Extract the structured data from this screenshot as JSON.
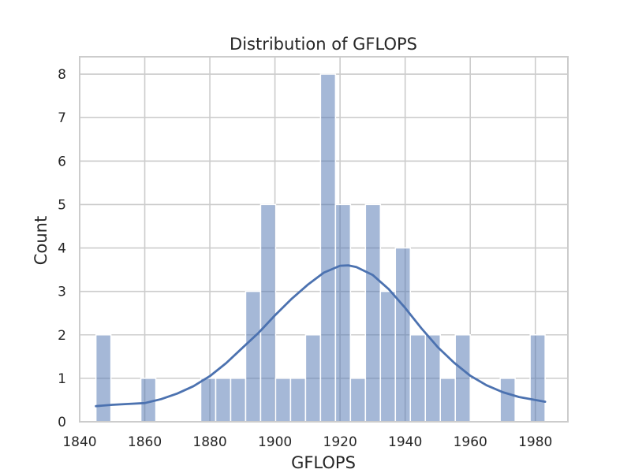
{
  "chart_data": {
    "type": "bar",
    "title": "Distribution of GFLOPS",
    "xlabel": "GFLOPS",
    "ylabel": "Count",
    "xlim": [
      1840,
      1990
    ],
    "ylim": [
      0,
      8.4
    ],
    "x_ticks": [
      1840,
      1860,
      1880,
      1900,
      1920,
      1940,
      1960,
      1980
    ],
    "y_ticks": [
      0,
      1,
      2,
      3,
      4,
      5,
      6,
      7,
      8
    ],
    "grid": true,
    "bins": [
      {
        "x0": 1845.0,
        "x1": 1849.6,
        "count": 2
      },
      {
        "x0": 1849.6,
        "x1": 1854.2,
        "count": 0
      },
      {
        "x0": 1854.2,
        "x1": 1858.8,
        "count": 0
      },
      {
        "x0": 1858.8,
        "x1": 1863.4,
        "count": 1
      },
      {
        "x0": 1863.4,
        "x1": 1868.0,
        "count": 0
      },
      {
        "x0": 1868.0,
        "x1": 1872.6,
        "count": 0
      },
      {
        "x0": 1872.6,
        "x1": 1877.2,
        "count": 0
      },
      {
        "x0": 1877.2,
        "x1": 1881.8,
        "count": 1
      },
      {
        "x0": 1881.8,
        "x1": 1886.4,
        "count": 1
      },
      {
        "x0": 1886.4,
        "x1": 1891.0,
        "count": 1
      },
      {
        "x0": 1891.0,
        "x1": 1895.6,
        "count": 3
      },
      {
        "x0": 1895.6,
        "x1": 1900.2,
        "count": 5
      },
      {
        "x0": 1900.2,
        "x1": 1904.8,
        "count": 1
      },
      {
        "x0": 1904.8,
        "x1": 1909.4,
        "count": 1
      },
      {
        "x0": 1909.4,
        "x1": 1914.0,
        "count": 2
      },
      {
        "x0": 1914.0,
        "x1": 1918.6,
        "count": 8
      },
      {
        "x0": 1918.6,
        "x1": 1923.2,
        "count": 5
      },
      {
        "x0": 1923.2,
        "x1": 1927.8,
        "count": 1
      },
      {
        "x0": 1927.8,
        "x1": 1932.4,
        "count": 5
      },
      {
        "x0": 1932.4,
        "x1": 1937.0,
        "count": 3
      },
      {
        "x0": 1937.0,
        "x1": 1941.6,
        "count": 4
      },
      {
        "x0": 1941.6,
        "x1": 1946.2,
        "count": 2
      },
      {
        "x0": 1946.2,
        "x1": 1950.8,
        "count": 2
      },
      {
        "x0": 1950.8,
        "x1": 1955.4,
        "count": 1
      },
      {
        "x0": 1955.4,
        "x1": 1960.0,
        "count": 2
      },
      {
        "x0": 1960.0,
        "x1": 1964.6,
        "count": 0
      },
      {
        "x0": 1964.6,
        "x1": 1969.2,
        "count": 0
      },
      {
        "x0": 1969.2,
        "x1": 1973.8,
        "count": 1
      },
      {
        "x0": 1973.8,
        "x1": 1978.4,
        "count": 0
      },
      {
        "x0": 1978.4,
        "x1": 1983.0,
        "count": 2
      }
    ],
    "kde": {
      "x": [
        1845,
        1850,
        1855,
        1860,
        1865,
        1870,
        1875,
        1880,
        1885,
        1890,
        1895,
        1900,
        1905,
        1910,
        1915,
        1920,
        1922.5,
        1925,
        1930,
        1935,
        1940,
        1945,
        1950,
        1955,
        1960,
        1965,
        1970,
        1975,
        1983
      ],
      "y": [
        0.36,
        0.39,
        0.41,
        0.43,
        0.52,
        0.65,
        0.82,
        1.05,
        1.35,
        1.7,
        2.05,
        2.45,
        2.82,
        3.15,
        3.43,
        3.59,
        3.6,
        3.56,
        3.38,
        3.05,
        2.62,
        2.15,
        1.72,
        1.36,
        1.06,
        0.84,
        0.68,
        0.57,
        0.46
      ]
    },
    "colors": {
      "bar": "#4C72B0",
      "bar_opacity": 0.5,
      "kde_line": "#4C72B0",
      "grid": "#cccccc",
      "frame": "#cccccc",
      "background": "#ffffff"
    }
  }
}
